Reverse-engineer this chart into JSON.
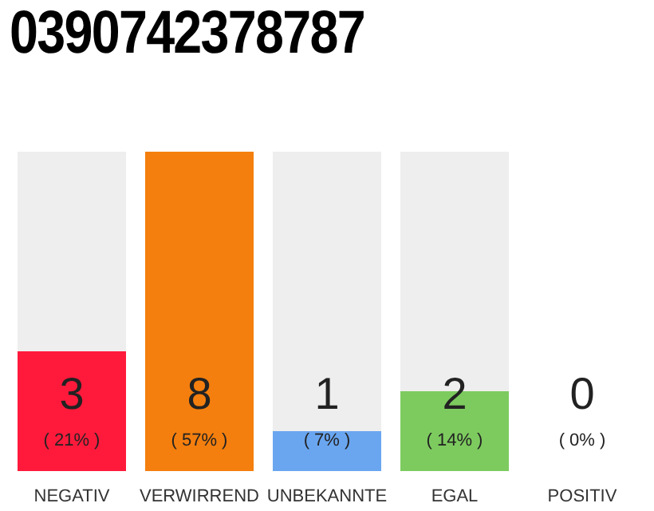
{
  "chart_data": {
    "type": "bar",
    "title": "0390742378787",
    "categories": [
      "NEGATIV",
      "VERWIRREND",
      "UNBEKANNTE",
      "EGAL",
      "POSITIV"
    ],
    "values": [
      3,
      8,
      1,
      2,
      0
    ],
    "colors": [
      "#ff1a3c",
      "#f47f0e",
      "#6aa6f0",
      "#7dcb5f",
      "#bbbbbb"
    ],
    "value_labels": [
      "3\n( 21% )",
      "8\n( 57% )",
      "1\n( 7% )",
      "2\n( 14% )",
      "0\n( 0% )"
    ]
  }
}
